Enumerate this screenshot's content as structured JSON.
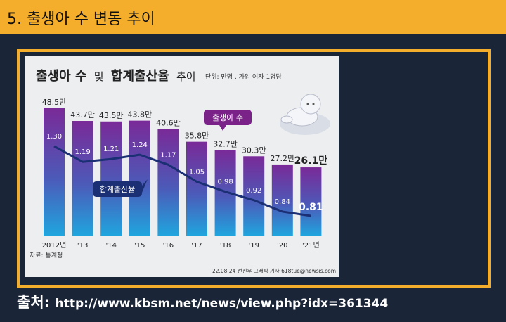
{
  "header": {
    "title": "5. 출생아 수 변동 추이"
  },
  "chart_data": {
    "type": "bar",
    "title_part1": "출생아 수",
    "title_part2": "및",
    "title_part3": "합계출산율",
    "title_part4": "추이",
    "unit_note": "단위: 만명 , 가임 여자 1명당",
    "categories": [
      "2012년",
      "'13",
      "'14",
      "'15",
      "'16",
      "'17",
      "'18",
      "'19",
      "'20",
      "'21년"
    ],
    "bar_series": {
      "name": "출생아 수",
      "values": [
        48.5,
        43.7,
        43.5,
        43.8,
        40.6,
        35.8,
        32.7,
        30.3,
        27.2,
        26.1
      ],
      "labels": [
        "48.5만",
        "43.7만",
        "43.5만",
        "43.8만",
        "40.6만",
        "35.8만",
        "32.7만",
        "30.3만",
        "27.2만",
        "26.1만"
      ]
    },
    "line_series": {
      "name": "합계출산율",
      "values": [
        1.3,
        1.19,
        1.21,
        1.24,
        1.17,
        1.05,
        0.98,
        0.92,
        0.84,
        0.81
      ],
      "labels": [
        "1.30",
        "1.19",
        "1.21",
        "1.24",
        "1.17",
        "1.05",
        "0.98",
        "0.92",
        "0.84",
        "0.81"
      ]
    },
    "source_note": "자료: 통계청",
    "credit": "22.08.24 전진우 그래픽 기자 618tue@newsis.com",
    "colors": {
      "bar_top": "#7a2a98",
      "bar_bottom": "#1fa6df",
      "line": "#1a2f74",
      "callout": "#7b2289"
    }
  },
  "footer": {
    "source_label": "출처:",
    "source_url": "http://www.kbsm.net/news/view.php?idx=361344"
  }
}
